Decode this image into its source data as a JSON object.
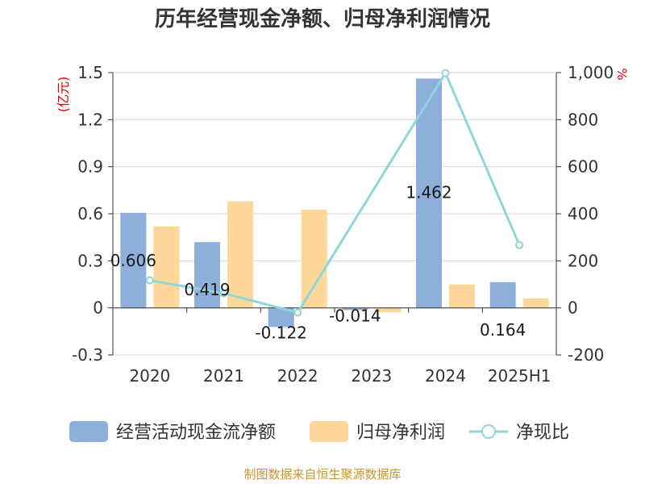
{
  "chart_data": {
    "type": "bar",
    "title": "历年经营现金净额、归母净利润情况",
    "categories": [
      "2020",
      "2021",
      "2022",
      "2023",
      "2024",
      "2025H1"
    ],
    "series": [
      {
        "name": "经营活动现金流净额",
        "type": "bar",
        "axis": "left",
        "color": "#8eaedb",
        "values": [
          0.606,
          0.419,
          -0.122,
          -0.014,
          1.462,
          0.164
        ],
        "labels": [
          "0.606",
          "0.419",
          "-0.122",
          "-0.014",
          "1.462",
          "0.164"
        ]
      },
      {
        "name": "归母净利润",
        "type": "bar",
        "axis": "left",
        "color": "#fdd89a",
        "values": [
          0.52,
          0.68,
          0.625,
          -0.028,
          0.15,
          0.06
        ]
      },
      {
        "name": "净现比",
        "type": "line",
        "axis": "right",
        "color": "#8fd6d9",
        "values": [
          117,
          62,
          -20,
          null,
          998,
          267
        ]
      }
    ],
    "y_left": {
      "unit": "(亿元)",
      "ylim": [
        -0.3,
        1.5
      ],
      "ticks": [
        "1.5",
        "1.2",
        "0.9",
        "0.6",
        "0.3",
        "0",
        "-0.3"
      ]
    },
    "y_right": {
      "unit": "%",
      "ylim": [
        -200,
        1000
      ],
      "ticks": [
        "1,000",
        "800",
        "600",
        "400",
        "200",
        "0",
        "-200"
      ]
    },
    "grid": true,
    "legend_position": "bottom"
  },
  "footer": {
    "source": "制图数据来自恒生聚源数据库"
  }
}
